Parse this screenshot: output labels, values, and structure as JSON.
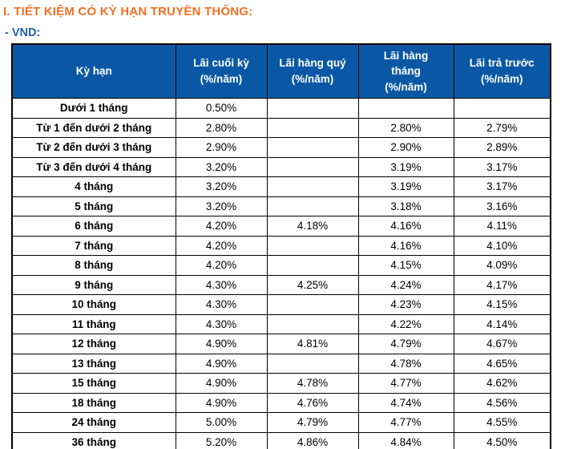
{
  "page": {
    "title": "I. TIẾT KIỆM CÓ KỲ HẠN TRUYỀN THỐNG:",
    "currency_label": "- VND:"
  },
  "colors": {
    "title_orange": "#F36F21",
    "currency_blue": "#1B5FAE",
    "header_bg": "#0A58A5",
    "header_text": "#FFFFFF",
    "border": "#000000"
  },
  "table": {
    "columns": [
      {
        "label": "Kỳ hạn",
        "unit": ""
      },
      {
        "label": "Lãi cuối kỳ",
        "unit": "(%/năm)"
      },
      {
        "label": "Lãi hàng quý",
        "unit": "(%/năm)"
      },
      {
        "label": "Lãi hàng tháng",
        "unit": "(%/năm)"
      },
      {
        "label": "Lãi trả trước",
        "unit": "(%/năm)"
      }
    ],
    "rows": [
      {
        "cells": [
          "Dưới 1 tháng",
          "0.50%",
          "",
          "",
          ""
        ]
      },
      {
        "cells": [
          "Từ 1 đến dưới 2 tháng",
          "2.80%",
          "",
          "2.80%",
          "2.79%"
        ]
      },
      {
        "cells": [
          "Từ 2 đến dưới 3 tháng",
          "2.90%",
          "",
          "2.90%",
          "2.89%"
        ]
      },
      {
        "cells": [
          "Từ 3 đến dưới 4 tháng",
          "3.20%",
          "",
          "3.19%",
          "3.17%"
        ]
      },
      {
        "cells": [
          "4 tháng",
          "3.20%",
          "",
          "3.19%",
          "3.17%"
        ]
      },
      {
        "cells": [
          "5 tháng",
          "3.20%",
          "",
          "3.18%",
          "3.16%"
        ]
      },
      {
        "cells": [
          "6 tháng",
          "4.20%",
          "4.18%",
          "4.16%",
          "4.11%"
        ]
      },
      {
        "cells": [
          "7 tháng",
          "4.20%",
          "",
          "4.16%",
          "4.10%"
        ]
      },
      {
        "cells": [
          "8 tháng",
          "4.20%",
          "",
          "4.15%",
          "4.09%"
        ]
      },
      {
        "cells": [
          "9 tháng",
          "4.30%",
          "4.25%",
          "4.24%",
          "4.17%"
        ]
      },
      {
        "cells": [
          "10 tháng",
          "4.30%",
          "",
          "4.23%",
          "4.15%"
        ]
      },
      {
        "cells": [
          "11 tháng",
          "4.30%",
          "",
          "4.22%",
          "4.14%"
        ]
      },
      {
        "cells": [
          "12 tháng",
          "4.90%",
          "4.81%",
          "4.79%",
          "4.67%"
        ]
      },
      {
        "cells": [
          "13 tháng",
          "4.90%",
          "",
          "4.78%",
          "4.65%"
        ]
      },
      {
        "cells": [
          "15 tháng",
          "4.90%",
          "4.78%",
          "4.77%",
          "4.62%"
        ]
      },
      {
        "cells": [
          "18 tháng",
          "4.90%",
          "4.76%",
          "4.74%",
          "4.56%"
        ]
      },
      {
        "cells": [
          "24 tháng",
          "5.00%",
          "4.79%",
          "4.77%",
          "4.55%"
        ]
      },
      {
        "cells": [
          "36 tháng",
          "5.20%",
          "4.86%",
          "4.84%",
          "4.50%"
        ]
      }
    ]
  }
}
